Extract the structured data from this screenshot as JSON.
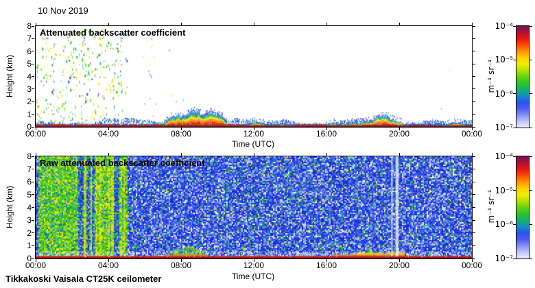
{
  "figure": {
    "date_title": "10 Nov 2019",
    "caption": "Tikkakoski Vaisala CT25K ceilometer",
    "background": "#ffffff"
  },
  "colorbar_gradient": [
    "#70105e",
    "#b01030",
    "#e51718",
    "#ff4a00",
    "#ff9400",
    "#ffd000",
    "#f2ee00",
    "#b5e000",
    "#62d40e",
    "#2cc42c",
    "#15b06b",
    "#128dc0",
    "#2a52ee",
    "#4a5df0",
    "#8490f4",
    "#bcc4fa",
    "#edeffe"
  ],
  "chart_data": [
    {
      "type": "heatmap",
      "title": "Attenuated backscatter coefficient",
      "xlabel": "Time (UTC)",
      "ylabel": "Height (km)",
      "x_range_hours": [
        0,
        24
      ],
      "x_ticks": [
        "00:00",
        "04:00",
        "08:00",
        "12:00",
        "16:00",
        "20:00",
        "00:00"
      ],
      "y_range_km": [
        0,
        8
      ],
      "y_ticks": [
        "0",
        "1",
        "2",
        "3",
        "4",
        "5",
        "6",
        "7",
        "8"
      ],
      "grid": false,
      "colorbar": {
        "unit": "m⁻¹ sr⁻¹",
        "tick_labels": [
          "10⁻⁴",
          "10⁻⁵",
          "10⁻⁶",
          "10⁻⁷"
        ],
        "scale": "log",
        "value_range": [
          "1e-7",
          "1e-4"
        ]
      },
      "content": {
        "noise_speckles": {
          "time_h": [
            0.05,
            5.0
          ],
          "height_km": [
            0.45,
            7.75
          ],
          "density": 0.105,
          "colors": [
            [
              "#22c822",
              0.32
            ],
            [
              "#7fd61e",
              0.16
            ],
            [
              "#f2ea00",
              0.2
            ],
            [
              "#b9cf00",
              0.08
            ],
            [
              "#ff9d00",
              0.045
            ],
            [
              "#2a48ee",
              0.095
            ],
            [
              "#1fb9c8",
              0.08
            ]
          ]
        },
        "sparse_speckles": [
          {
            "time_h": [
              5.0,
              9.6
            ],
            "height_km": [
              0.9,
              7.6
            ],
            "density": 0.006
          },
          {
            "time_h": [
              6.2,
              6.5
            ],
            "height_km": [
              1.5,
              7.5
            ],
            "density": 0.03
          },
          {
            "time_h": [
              20.8,
              23.6
            ],
            "height_km": [
              0.8,
              7.2
            ],
            "density": 0.002
          }
        ],
        "surface_layer": {
          "maroon": "#7c1014",
          "red": "#e02610",
          "fuzz_top_km": [
            0.25,
            0.7
          ],
          "fuzz_colors": [
            [
              "#2a48ee",
              0.55
            ],
            [
              "#1fb9c8",
              0.2
            ],
            [
              "#5a77f2",
              0.15
            ],
            [
              "#2ebf3a",
              0.1
            ]
          ]
        },
        "aerosol_plumes": [
          {
            "time_h": [
              7.05,
              10.5
            ],
            "top_km": 1.45,
            "warmth": 0.9
          },
          {
            "time_h": [
              11.5,
              14.25
            ],
            "top_km": 1.0,
            "warmth": 0.75
          },
          {
            "time_h": [
              15.8,
              20.65
            ],
            "top_km": 1.15,
            "warmth": 0.95
          },
          {
            "time_h": [
              20.65,
              24.0
            ],
            "top_km": 0.42,
            "warmth": 0.6
          }
        ],
        "plume_layers": [
          [
            0.32,
            "#e32600"
          ],
          [
            0.5,
            "#ff8a00"
          ],
          [
            0.62,
            "#ffe400"
          ],
          [
            0.78,
            "#2fc81e"
          ]
        ],
        "plume_top_colors": [
          [
            "#2a48ee",
            0.6
          ],
          [
            "#19b0d8",
            0.4
          ]
        ]
      }
    },
    {
      "type": "heatmap",
      "title": "Raw attenuated backscatter coefficient",
      "xlabel": "Time (UTC)",
      "ylabel": "Height (km)",
      "x_range_hours": [
        0,
        24
      ],
      "x_ticks": [
        "00:00",
        "04:00",
        "08:00",
        "12:00",
        "16:00",
        "20:00",
        "00:00"
      ],
      "y_range_km": [
        0,
        8
      ],
      "y_ticks": [
        "0",
        "1",
        "2",
        "3",
        "4",
        "5",
        "6",
        "7",
        "8"
      ],
      "grid": false,
      "colorbar": {
        "unit": "m⁻¹ sr⁻¹",
        "tick_labels": [
          "10⁻⁴",
          "10⁻⁵",
          "10⁻⁶",
          "10⁻⁷"
        ],
        "scale": "log",
        "value_range": [
          "1e-7",
          "1e-4"
        ]
      },
      "content": {
        "background_noise_colors": [
          [
            "#1b2ed0",
            0.26
          ],
          [
            "#3050ee",
            0.28
          ],
          [
            "#6780f6",
            0.16
          ],
          [
            "#aeb9f8",
            0.12
          ],
          [
            "#eceefe",
            0.07
          ],
          [
            "#2ebf3a",
            0.07
          ],
          [
            "#19b9c9",
            0.02
          ],
          [
            "#d8de00",
            0.02
          ]
        ],
        "green_noise_zone": {
          "time_h": [
            0.12,
            5.05
          ],
          "colors": [
            [
              "#2ebf3a",
              0.3
            ],
            [
              "#6fd51c",
              0.26
            ],
            [
              "#e8e300",
              0.22
            ],
            [
              "#169f2c",
              0.08
            ],
            [
              "#3050ee",
              0.06
            ],
            [
              "#19b9c9",
              0.04
            ],
            [
              "#aeb9f8",
              0.04
            ]
          ],
          "blue_stripes_h": [
            [
              2.3,
              2.62
            ],
            [
              2.78,
              2.97
            ],
            [
              3.08,
              3.22
            ],
            [
              4.28,
              4.6
            ]
          ],
          "stripe_colors": [
            [
              "#3050ee",
              0.38
            ],
            [
              "#1b2ed0",
              0.2
            ],
            [
              "#2ebf3a",
              0.16
            ],
            [
              "#6fd51c",
              0.1
            ],
            [
              "#aeb9f8",
              0.1
            ],
            [
              "#19b9c9",
              0.06
            ]
          ],
          "yellow_columns_h": [
            2.68,
            3.02,
            3.3,
            3.52,
            3.98,
            4.18,
            4.66,
            4.85
          ],
          "yellow_colors": [
            [
              "#e8e300",
              0.5
            ],
            [
              "#ffb400",
              0.12
            ],
            [
              "#6fd51c",
              0.23
            ],
            [
              "#2ebf3a",
              0.15
            ]
          ]
        },
        "green_bumps": [
          {
            "time_h": [
              7.25,
              9.6
            ],
            "top_km": 0.95
          },
          {
            "time_h": [
              16.5,
              20.2
            ],
            "top_km": 0.6
          }
        ],
        "bump_colors": [
          [
            "#2ebf3a",
            0.4
          ],
          [
            "#6fd51c",
            0.25
          ],
          [
            "#e8e300",
            0.2
          ],
          [
            "#3050ee",
            0.15
          ]
        ],
        "warm_patches": [
          {
            "time_h": [
              7.2,
              9.45
            ],
            "top_km": 0.5
          },
          {
            "time_h": [
              16.4,
              20.3
            ],
            "top_km": 0.45
          }
        ],
        "warm_colors": {
          "yellow": "#ffd000",
          "orange": "#ff7a00"
        },
        "surface_layer": {
          "maroon": "#8a1020",
          "red": "#e02610",
          "lavender": "#dde2fc"
        },
        "light_streaks": [
          {
            "time_h": 19.6,
            "width_h": 0.1,
            "alpha": 0.55
          },
          {
            "time_h": 19.88,
            "width_h": 0.16,
            "alpha": 0.8
          }
        ]
      }
    }
  ]
}
